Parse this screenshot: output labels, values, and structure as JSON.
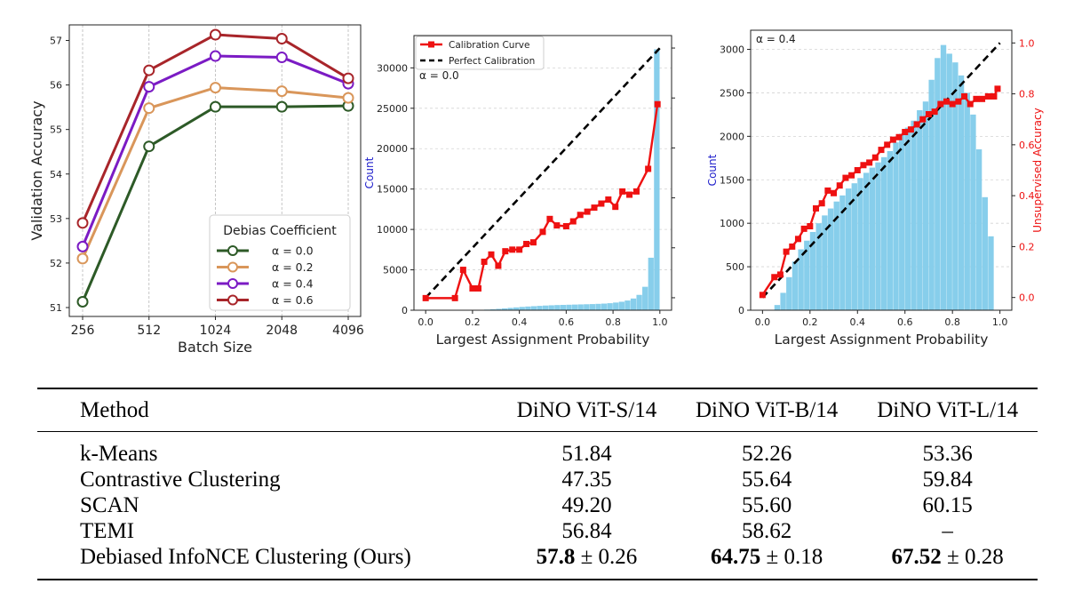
{
  "chart_data": [
    {
      "type": "line",
      "xlabel": "Batch Size",
      "ylabel": "Validation Accuracy",
      "categories": [
        "256",
        "512",
        "1024",
        "2048",
        "4096"
      ],
      "yticks": [
        51,
        52,
        53,
        54,
        55,
        56,
        57
      ],
      "ylim": [
        50.8,
        57.35
      ],
      "grid": "vertical",
      "legend": {
        "title": "Debias Coefficient",
        "placement": "lower-right"
      },
      "series": [
        {
          "name": "α = 0.0",
          "color": "#2d5a27",
          "values": [
            51.13,
            54.62,
            55.51,
            55.51,
            55.53
          ]
        },
        {
          "name": "α = 0.2",
          "color": "#d9965a",
          "values": [
            52.1,
            55.48,
            55.94,
            55.86,
            55.71
          ]
        },
        {
          "name": "α = 0.4",
          "color": "#7b1bc4",
          "values": [
            52.37,
            55.96,
            56.65,
            56.62,
            56.03
          ]
        },
        {
          "name": "α = 0.6",
          "color": "#a8252a",
          "values": [
            52.9,
            56.33,
            57.13,
            57.04,
            56.15
          ]
        }
      ]
    },
    {
      "type": "bar",
      "annotation": "α = 0.0",
      "xlabel": "Largest Assignment Probability",
      "ylabel": "Count",
      "xticks": [
        0.0,
        0.2,
        0.4,
        0.6,
        0.8,
        1.0
      ],
      "yticks": [
        0,
        5000,
        10000,
        15000,
        20000,
        25000,
        30000
      ],
      "ylim": [
        0,
        34000
      ],
      "xlim": [
        -0.05,
        1.05
      ],
      "grid": "horizontal",
      "legend": {
        "placement": "top-left",
        "entries": [
          "Calibration Curve",
          "Perfect Calibration"
        ]
      },
      "histogram": {
        "color": "#87ceeb",
        "bin_width": 0.025,
        "bins_x": [
          0.0,
          0.025,
          0.05,
          0.075,
          0.1,
          0.125,
          0.15,
          0.175,
          0.2,
          0.225,
          0.25,
          0.275,
          0.3,
          0.325,
          0.35,
          0.375,
          0.4,
          0.425,
          0.45,
          0.475,
          0.5,
          0.525,
          0.55,
          0.575,
          0.6,
          0.625,
          0.65,
          0.675,
          0.7,
          0.725,
          0.75,
          0.775,
          0.8,
          0.825,
          0.85,
          0.875,
          0.9,
          0.925,
          0.95,
          0.975
        ],
        "counts": [
          0,
          0,
          0,
          0,
          0,
          0,
          0,
          0,
          20,
          40,
          80,
          120,
          170,
          230,
          290,
          350,
          410,
          460,
          500,
          540,
          580,
          610,
          640,
          660,
          680,
          700,
          720,
          740,
          760,
          790,
          820,
          870,
          950,
          1050,
          1200,
          1450,
          1900,
          2900,
          6500,
          32300
        ]
      },
      "calibration_curve": {
        "name": "Calibration Curve",
        "color": "#ee1111",
        "x": [
          0.0,
          0.125,
          0.16,
          0.2,
          0.225,
          0.25,
          0.28,
          0.31,
          0.34,
          0.37,
          0.4,
          0.43,
          0.46,
          0.5,
          0.53,
          0.56,
          0.6,
          0.63,
          0.66,
          0.69,
          0.72,
          0.75,
          0.78,
          0.81,
          0.84,
          0.87,
          0.9,
          0.95,
          0.99
        ],
        "y": [
          1500,
          1500,
          5000,
          2700,
          2700,
          6000,
          6900,
          5500,
          7300,
          7500,
          7500,
          8200,
          8400,
          9700,
          11300,
          10500,
          10400,
          11000,
          11800,
          12200,
          12700,
          13200,
          13700,
          12800,
          14700,
          14300,
          14700,
          17500,
          25500
        ],
        "secondary_ylim": [
          -0.05,
          1.05
        ]
      },
      "perfect_calibration": {
        "name": "Perfect Calibration",
        "x": [
          0,
          1
        ],
        "y": [
          0,
          1
        ]
      }
    },
    {
      "type": "bar",
      "annotation": "α = 0.4",
      "xlabel": "Largest Assignment Probability",
      "ylabel": "Count",
      "y2label": "Unsupervised Accuracy",
      "xticks": [
        0.0,
        0.2,
        0.4,
        0.6,
        0.8,
        1.0
      ],
      "yticks": [
        0,
        500,
        1000,
        1500,
        2000,
        2500,
        3000
      ],
      "y2ticks": [
        0.0,
        0.2,
        0.4,
        0.6,
        0.8,
        1.0
      ],
      "ylim": [
        0,
        3220
      ],
      "y2lim": [
        -0.05,
        1.05
      ],
      "xlim": [
        -0.05,
        1.05
      ],
      "grid": "horizontal",
      "histogram": {
        "color": "#87ceeb",
        "bin_width": 0.025,
        "bins_x": [
          0.0,
          0.025,
          0.05,
          0.075,
          0.1,
          0.125,
          0.15,
          0.175,
          0.2,
          0.225,
          0.25,
          0.275,
          0.3,
          0.325,
          0.35,
          0.375,
          0.4,
          0.425,
          0.45,
          0.475,
          0.5,
          0.525,
          0.55,
          0.575,
          0.6,
          0.625,
          0.65,
          0.675,
          0.7,
          0.725,
          0.75,
          0.775,
          0.8,
          0.825,
          0.85,
          0.875,
          0.9,
          0.925,
          0.95,
          0.975
        ],
        "counts": [
          0,
          0,
          60,
          200,
          380,
          560,
          700,
          800,
          900,
          1000,
          1090,
          1170,
          1250,
          1320,
          1400,
          1460,
          1520,
          1580,
          1640,
          1700,
          1760,
          1830,
          1930,
          2030,
          2100,
          2180,
          2300,
          2400,
          2650,
          2900,
          3050,
          2950,
          2850,
          2700,
          2500,
          2250,
          1850,
          1300,
          850,
          0
        ]
      },
      "calibration_curve": {
        "color": "#ee1111",
        "x": [
          0.0,
          0.05,
          0.075,
          0.1,
          0.125,
          0.15,
          0.175,
          0.2,
          0.225,
          0.25,
          0.275,
          0.3,
          0.325,
          0.35,
          0.375,
          0.4,
          0.425,
          0.45,
          0.475,
          0.5,
          0.525,
          0.55,
          0.575,
          0.6,
          0.625,
          0.65,
          0.675,
          0.7,
          0.725,
          0.75,
          0.775,
          0.8,
          0.825,
          0.85,
          0.875,
          0.9,
          0.925,
          0.95,
          0.975,
          0.99
        ],
        "y": [
          0.01,
          0.08,
          0.09,
          0.18,
          0.2,
          0.23,
          0.27,
          0.28,
          0.35,
          0.37,
          0.42,
          0.41,
          0.44,
          0.47,
          0.48,
          0.5,
          0.52,
          0.53,
          0.55,
          0.58,
          0.6,
          0.62,
          0.63,
          0.65,
          0.66,
          0.68,
          0.7,
          0.72,
          0.73,
          0.76,
          0.77,
          0.76,
          0.77,
          0.79,
          0.76,
          0.78,
          0.78,
          0.79,
          0.79,
          0.82
        ]
      },
      "perfect_calibration": {
        "x": [
          0,
          1
        ],
        "y": [
          0,
          1
        ]
      }
    }
  ],
  "table": {
    "headers": [
      "Method",
      "DiNO ViT-S/14",
      "DiNO ViT-B/14",
      "DiNO ViT-L/14"
    ],
    "rows": [
      {
        "method": "k-Means",
        "s": {
          "main": "51.84",
          "pm": ""
        },
        "b": {
          "main": "52.26",
          "pm": ""
        },
        "l": {
          "main": "53.36",
          "pm": ""
        }
      },
      {
        "method": "Contrastive Clustering",
        "s": {
          "main": "47.35",
          "pm": ""
        },
        "b": {
          "main": "55.64",
          "pm": ""
        },
        "l": {
          "main": "59.84",
          "pm": ""
        }
      },
      {
        "method": "SCAN",
        "s": {
          "main": "49.20",
          "pm": ""
        },
        "b": {
          "main": "55.60",
          "pm": ""
        },
        "l": {
          "main": "60.15",
          "pm": ""
        }
      },
      {
        "method": "TEMI",
        "s": {
          "main": "56.84",
          "pm": ""
        },
        "b": {
          "main": "58.62",
          "pm": ""
        },
        "l": {
          "main": "–",
          "pm": ""
        }
      },
      {
        "method": "Debiased InfoNCE Clustering (Ours)",
        "s": {
          "main": "57.8",
          "pm": "± 0.26"
        },
        "b": {
          "main": "64.75",
          "pm": "± 0.18"
        },
        "l": {
          "main": "67.52",
          "pm": "± 0.28"
        }
      }
    ]
  }
}
